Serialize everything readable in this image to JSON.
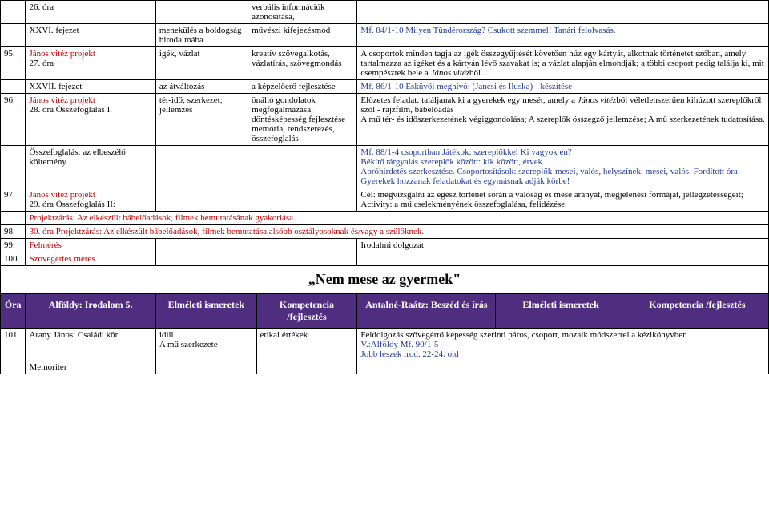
{
  "rows": [
    {
      "n": "",
      "c1": "26. óra",
      "c2": "",
      "c3": "verbális információk azonosítása,",
      "c4": ""
    },
    {
      "n": "",
      "c1": "XXVI. fejezet",
      "c2": "menekülés a boldogság birodalmába",
      "c3": "művészi kifejezésmód",
      "c4": "<span class='blue'>Mf. 84/1-10 Milyen Tündérország? Csukott szemmel! Tanári felolvasás.</span>"
    },
    {
      "n": "95.",
      "c1": "<span class='red'>János vitéz projekt</span><br>27. óra",
      "c2": "igék, vázlat",
      "c3": "kreatív szövegalkotás, vázlatírás, szövegmondás",
      "c4": "A csoportok minden tagja az igék összegyűjtését követően húz egy kártyát, alkotnak történetet szóban, amely tartalmazza az igéket és a kártyán lévő szavakat is; a vázlat alapján elmondják; a többi csoport pedig találja ki, mit csempésztek bele a <span class='italic'>János vitéz</span>ből."
    },
    {
      "n": "",
      "c1": "XXVII. fejezet",
      "c2": "az átváltozás",
      "c3": "a képzelőerő fejlesztése",
      "c4": "<span class='blue'>Mf. 86/1-10 Esküvői meghívó: (Jancsi és Iluska) - készítése</span>"
    },
    {
      "n": "96.",
      "c1": "<span class='red'>János vitéz projekt</span><br>28. óra Összefoglalás I.",
      "c2": "tér-idő; szerkezet; jellemzés",
      "c3": "önálló gondolatok megfogalmazása, döntésképesség fejlesztése memória, rendszerezés, összefoglalás",
      "c4": "Előzetes feladat: találjanak ki a gyerekek egy mesét, amely a <span class='italic'>János vitéz</span>ből véletlenszerűen kihúzott szereplőkről szól - rajzfilm, bábelőadás<br>A mű tér- és időszerkezetének végiggondolása; A szereplők összegző jellemzése; A mű szerkezetének tudatosítása."
    },
    {
      "n": "",
      "c1": "Összefoglalás: az elbeszélő költemény",
      "c2": "",
      "c3": "",
      "c4": "<span class='blue'>Mf. 88/1-4 csoportban Játékok: szereplőkkel Ki vagyok én?</span><br><span class='blue'>Békítő tárgyalás szereplők között: kik között, érvek.</span><br><span class='blue'>Apróhirdetés szerkesztése. Csoportosítások: szereplők-mesei, valós, helyszínek: mesei, valós. Fordított óra: Gyerekek hozzanak feladatokat és egymásnak adják körbe!</span>"
    },
    {
      "n": "97.",
      "c1": "<span class='red'>János vitéz projekt</span><br>29. óra Összefoglalás II:",
      "c2": "",
      "c3": "",
      "c4": "Cél: megvizsgálni az egész történet során a valóság és mese arányát, megjelenési formáját, jellegzetességeit;<br>Activity: a mű cselekményének összefoglalása, felidézése"
    }
  ],
  "full98_pre": "Projektzárás: Az elkészült bábelőadások, filmek bemutatásának gyakorlása",
  "full98": {
    "n": "98.",
    "t": "30. óra Projektzárás: Az elkészült bábelőadások, filmek bemutatása alsóbb osztályosoknak és/vagy a szülőknek."
  },
  "r99": {
    "n": "99.",
    "c1": "Felmérés",
    "c4": "Irodalmi dolgozat"
  },
  "r100": {
    "n": "100.",
    "c1": "Szövegértés mérés"
  },
  "title": "„Nem mese az gyermek\"",
  "hdr": {
    "a": "Óra",
    "b": "Alföldy: Irodalom 5.",
    "c": "Elméleti ismeretek",
    "d": "Kompetencia /fejlesztés",
    "e": "Antalné-Raátz: Beszéd és írás",
    "f": "Elméleti ismeretek",
    "g": "Kompetencia /fejlesztés"
  },
  "r101": {
    "n": "101.",
    "c1": "Arany János: Családi kör",
    "c2": "idill<br>A mű szerkezete",
    "c3": "etikai értékek",
    "c4": "Feldolgozás szövegértő képesség szerinti páros, csoport, mozaik módszerrel a kézikönyvben<br><span class='blue'>V.:Alföldy Mf. 90/1-5</span><br><span class='blue'>Jobb leszek irod. 22-24. old</span>"
  },
  "mem": "Memoriter"
}
